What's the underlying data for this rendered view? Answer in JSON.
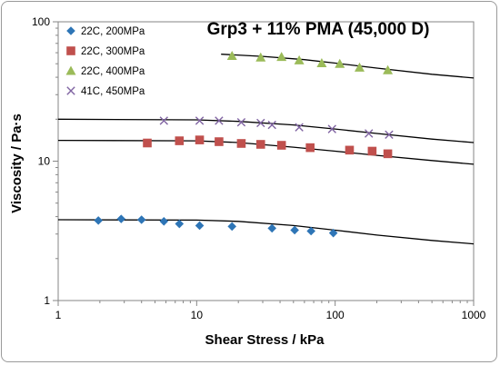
{
  "chart_data": {
    "type": "scatter",
    "title": "Grp3 + 11% PMA (45,000 D)",
    "xlabel": "Shear Stress / kPa",
    "ylabel": "Viscosity / Pa·s",
    "x_scale": "log",
    "y_scale": "log",
    "xlim": [
      1,
      1000
    ],
    "ylim": [
      1,
      100
    ],
    "x_ticks": [
      "1",
      "10",
      "100",
      "1000"
    ],
    "y_ticks": [
      "1",
      "10",
      "100"
    ],
    "grid": false,
    "legend_position": "top-left",
    "series": [
      {
        "name": "22C, 200MPa",
        "marker": "diamond",
        "color": "#2e75b6",
        "points": [
          [
            1.95,
            3.75
          ],
          [
            2.85,
            3.85
          ],
          [
            4.0,
            3.8
          ],
          [
            5.8,
            3.7
          ],
          [
            7.5,
            3.55
          ],
          [
            10.5,
            3.45
          ],
          [
            18.0,
            3.4
          ],
          [
            35.0,
            3.3
          ],
          [
            51.0,
            3.2
          ],
          [
            67.0,
            3.15
          ],
          [
            97.0,
            3.05
          ]
        ],
        "fit": [
          [
            1,
            3.8
          ],
          [
            10,
            3.78
          ],
          [
            20,
            3.7
          ],
          [
            50,
            3.45
          ],
          [
            100,
            3.2
          ],
          [
            200,
            2.95
          ],
          [
            500,
            2.7
          ],
          [
            1000,
            2.55
          ]
        ]
      },
      {
        "name": "22C, 300MPa",
        "marker": "square",
        "color": "#c0504d",
        "points": [
          [
            4.4,
            13.5
          ],
          [
            7.5,
            14.0
          ],
          [
            10.5,
            14.2
          ],
          [
            14.5,
            13.8
          ],
          [
            21.0,
            13.4
          ],
          [
            29.0,
            13.2
          ],
          [
            41.0,
            13.0
          ],
          [
            66.0,
            12.5
          ],
          [
            127.0,
            12.0
          ],
          [
            185.0,
            11.8
          ],
          [
            240.0,
            11.3
          ]
        ],
        "fit": [
          [
            1,
            14.1
          ],
          [
            10,
            14.0
          ],
          [
            20,
            13.6
          ],
          [
            50,
            12.6
          ],
          [
            100,
            11.8
          ],
          [
            200,
            11.0
          ],
          [
            500,
            10.1
          ],
          [
            1000,
            9.5
          ]
        ]
      },
      {
        "name": "22C, 400MPa",
        "marker": "triangle",
        "color": "#9bbb59",
        "points": [
          [
            18.0,
            57.0
          ],
          [
            29.0,
            55.5
          ],
          [
            41.0,
            56.0
          ],
          [
            55.0,
            53.0
          ],
          [
            80.0,
            50.5
          ],
          [
            108.0,
            50.0
          ],
          [
            150.0,
            47.0
          ],
          [
            240.0,
            45.0
          ]
        ],
        "fit": [
          [
            15,
            58.5
          ],
          [
            30,
            56.5
          ],
          [
            60,
            53.5
          ],
          [
            100,
            50.5
          ],
          [
            200,
            46.5
          ],
          [
            500,
            42.0
          ],
          [
            1000,
            39.5
          ]
        ]
      },
      {
        "name": "41C, 450MPa",
        "marker": "x",
        "color": "#8064a2",
        "points": [
          [
            5.8,
            19.5
          ],
          [
            10.5,
            19.5
          ],
          [
            14.5,
            19.5
          ],
          [
            21.0,
            19.0
          ],
          [
            29.0,
            18.8
          ],
          [
            35.0,
            18.2
          ],
          [
            55.0,
            17.5
          ],
          [
            95.0,
            17.0
          ],
          [
            175.0,
            15.8
          ],
          [
            245.0,
            15.5
          ]
        ],
        "fit": [
          [
            1,
            20.0
          ],
          [
            10,
            19.8
          ],
          [
            20,
            19.3
          ],
          [
            50,
            18.2
          ],
          [
            100,
            17.0
          ],
          [
            200,
            15.8
          ],
          [
            500,
            14.4
          ],
          [
            1000,
            13.6
          ]
        ]
      }
    ]
  }
}
